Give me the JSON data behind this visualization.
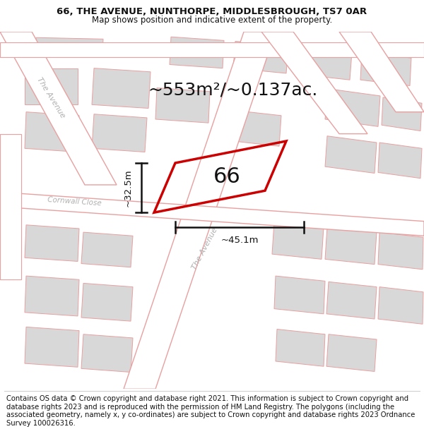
{
  "title": "66, THE AVENUE, NUNTHORPE, MIDDLESBROUGH, TS7 0AR",
  "subtitle": "Map shows position and indicative extent of the property.",
  "area_text": "~553m²/~0.137ac.",
  "number_label": "66",
  "dim_width": "~45.1m",
  "dim_height": "~32.5m",
  "footer": "Contains OS data © Crown copyright and database right 2021. This information is subject to Crown copyright and database rights 2023 and is reproduced with the permission of HM Land Registry. The polygons (including the associated geometry, namely x, y co-ordinates) are subject to Crown copyright and database rights 2023 Ordnance Survey 100026316.",
  "bg_color": "#f0f0f0",
  "road_fill": "#ffffff",
  "road_stroke": "#e8a0a0",
  "building_fill": "#d8d8d8",
  "building_stroke": "#e8a0a0",
  "property_stroke": "#cc0000",
  "annotation_color": "#111111",
  "street_label_color": "#b0b0b0",
  "title_color": "#111111",
  "footer_color": "#111111",
  "footer_fontsize": 7.2,
  "title_fontsize": 9.5,
  "subtitle_fontsize": 8.5,
  "area_fontsize": 18,
  "number_fontsize": 22,
  "dim_fontsize": 9.5,
  "street_label_fontsize": 8.0
}
